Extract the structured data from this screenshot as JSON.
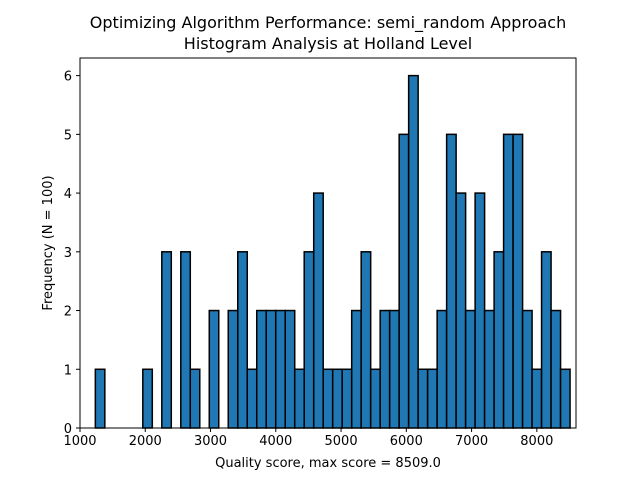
{
  "chart_data": {
    "type": "bar",
    "title": "Optimizing Algorithm Performance: semi_random Approach",
    "subtitle": "Histogram Analysis at Holland Level",
    "xlabel": "Quality score, max score = 8509.0",
    "ylabel": "Frequency (N = 100)",
    "xlim": [
      1000,
      8600
    ],
    "ylim": [
      0,
      6.3
    ],
    "xticks": [
      1000,
      2000,
      3000,
      4000,
      5000,
      6000,
      7000,
      8000
    ],
    "yticks": [
      0,
      1,
      2,
      3,
      4,
      5,
      6
    ],
    "bar_color": "#1f77b4",
    "edge_color": "#000000",
    "bin_start": 1235,
    "bin_width": 145.48,
    "values": [
      1,
      0,
      0,
      0,
      0,
      1,
      0,
      3,
      0,
      3,
      1,
      0,
      2,
      0,
      2,
      3,
      1,
      2,
      2,
      2,
      2,
      1,
      3,
      4,
      1,
      1,
      1,
      2,
      3,
      1,
      2,
      2,
      5,
      6,
      1,
      1,
      2,
      5,
      4,
      2,
      4,
      2,
      3,
      5,
      5,
      2,
      1,
      3,
      2,
      1
    ]
  }
}
